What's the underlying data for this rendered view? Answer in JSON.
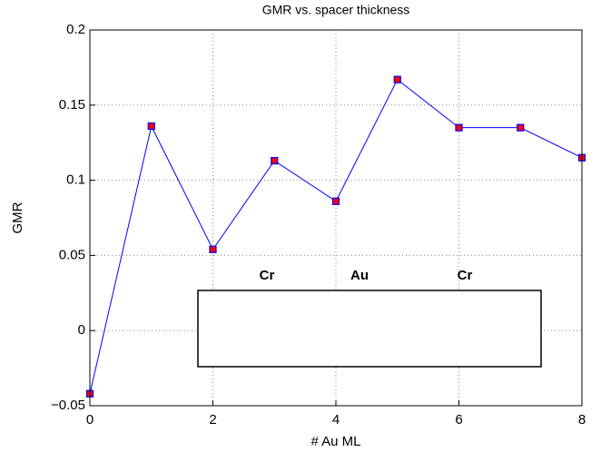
{
  "chart_data": {
    "type": "line",
    "title": "GMR vs. spacer thickness",
    "x_label": "# Au ML",
    "y_label": "GMR",
    "x": [
      0,
      1,
      2,
      3,
      4,
      5,
      6,
      7,
      8
    ],
    "series": [
      {
        "name": "GMR",
        "color": "#0000ff",
        "marker_color": "#ff0000",
        "values": [
          -0.042,
          0.136,
          0.054,
          0.113,
          0.086,
          0.167,
          0.135,
          0.135,
          0.115
        ]
      }
    ],
    "xlim": [
      0,
      8
    ],
    "xticks": [
      0,
      2,
      4,
      6,
      8
    ],
    "ylim": [
      -0.05,
      0.2
    ],
    "yticks": [
      {
        "value": -0.05,
        "label": "−0.05"
      },
      0,
      0.05,
      0.1,
      0.15,
      0.2
    ],
    "grid": true,
    "inset_labels": [
      "Cr",
      "Au",
      "Cr"
    ]
  }
}
